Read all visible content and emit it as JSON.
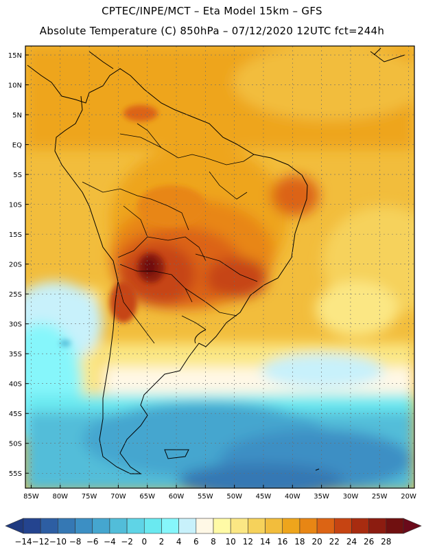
{
  "title": {
    "line1": "CPTEC/INPE/MCT –  Eta Model 15km – GFS",
    "line2": "Absolute Temperature (C) 850hPa – 07/12/2020 12UTC fct=244h"
  },
  "map": {
    "lat_labels": [
      "15N",
      "10N",
      "5N",
      "EQ",
      "5S",
      "10S",
      "15S",
      "20S",
      "25S",
      "30S",
      "35S",
      "40S",
      "45S",
      "50S",
      "55S"
    ],
    "lon_labels": [
      "85W",
      "80W",
      "75W",
      "70W",
      "65W",
      "60W",
      "55W",
      "50W",
      "45W",
      "40W",
      "35W",
      "30W",
      "25W",
      "20W"
    ],
    "lat_range": [
      16.5,
      -57.5
    ],
    "lon_range": [
      -86,
      -19
    ]
  },
  "colorbar": {
    "labels": [
      "-14",
      "-12",
      "-10",
      "-8",
      "-6",
      "-4",
      "-2",
      "0",
      "2",
      "4",
      "6",
      "8",
      "10",
      "12",
      "14",
      "16",
      "18",
      "20",
      "22",
      "24",
      "26",
      "28"
    ],
    "colors": [
      "#24448f",
      "#2d5ea3",
      "#3578b4",
      "#3c8fc4",
      "#45a6cf",
      "#52bdd9",
      "#5fd4e6",
      "#6ae9f0",
      "#86f6fb",
      "#c8f1fb",
      "#fff8e6",
      "#fffaa6",
      "#fbe784",
      "#f6d25b",
      "#f2bd3c",
      "#eea51c",
      "#e88614",
      "#dc6414",
      "#c64412",
      "#a82c10",
      "#8c1c10",
      "#701010"
    ],
    "low_color": "#1f3a80",
    "high_color": "#6a0a1a"
  }
}
